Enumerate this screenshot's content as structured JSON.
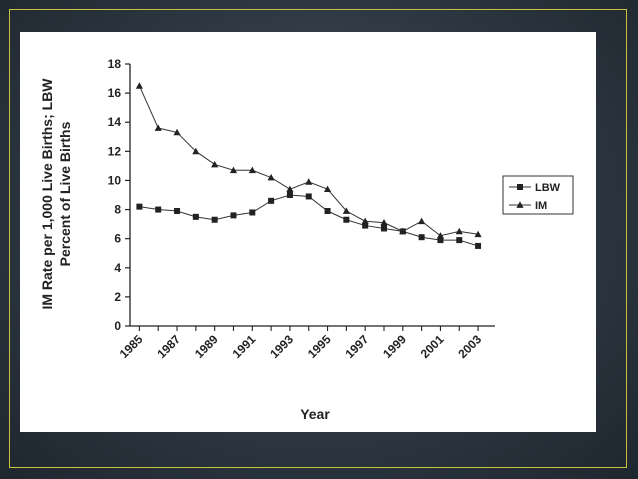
{
  "chart_data": {
    "type": "line",
    "xlabel": "Year",
    "ylabel_lines": [
      "IM Rate per 1,000 Live Births; LBW",
      "Percent of Live Births"
    ],
    "ylim": [
      0,
      18
    ],
    "y_ticks": [
      "0",
      "2",
      "4",
      "6",
      "8",
      "10",
      "12",
      "14",
      "16",
      "18"
    ],
    "x_tick_labels": [
      "1985",
      "1987",
      "1989",
      "1991",
      "1993",
      "1995",
      "1997",
      "1999",
      "2001",
      "2003"
    ],
    "x": [
      1985,
      1986,
      1987,
      1988,
      1989,
      1990,
      1991,
      1992,
      1993,
      1994,
      1995,
      1996,
      1997,
      1998,
      1999,
      2000,
      2001,
      2002,
      2003
    ],
    "series": [
      {
        "name": "LBW",
        "marker": "square",
        "values": [
          8.2,
          8.0,
          7.9,
          7.5,
          7.3,
          7.6,
          7.8,
          8.6,
          9.0,
          8.9,
          7.9,
          7.3,
          6.9,
          6.7,
          6.5,
          6.1,
          5.9,
          5.9,
          5.5
        ]
      },
      {
        "name": "IM",
        "marker": "triangle",
        "values": [
          16.5,
          13.6,
          13.3,
          12.0,
          11.1,
          10.7,
          10.7,
          10.2,
          9.4,
          9.9,
          9.4,
          7.9,
          7.2,
          7.1,
          6.5,
          7.2,
          6.2,
          6.5,
          6.3
        ]
      }
    ],
    "legend_position": "right",
    "grid": false
  }
}
